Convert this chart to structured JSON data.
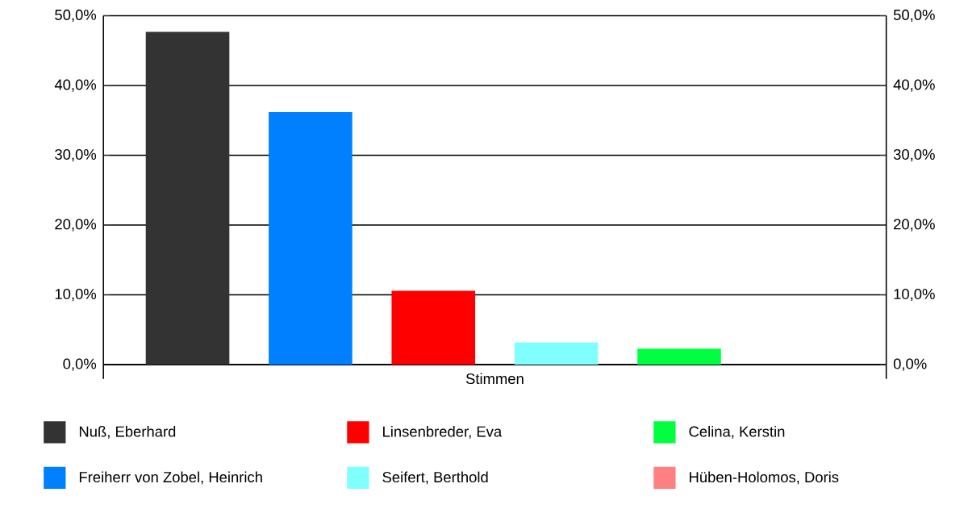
{
  "chart_data": {
    "type": "bar",
    "categories": [
      "Stimmen"
    ],
    "series": [
      {
        "name": "Nuß, Eberhard",
        "color": "#333333",
        "values": [
          47.7
        ]
      },
      {
        "name": "Freiherr von Zobel, Heinrich",
        "color": "#0080ff",
        "values": [
          36.2
        ]
      },
      {
        "name": "Linsenbreder, Eva",
        "color": "#ff0000",
        "values": [
          10.6
        ]
      },
      {
        "name": "Seifert, Berthold",
        "color": "#80ffff",
        "values": [
          3.2
        ]
      },
      {
        "name": "Celina, Kerstin",
        "color": "#00ff40",
        "values": [
          2.3
        ]
      },
      {
        "name": "Hüben-Holomos, Doris",
        "color": "#ff8080",
        "values": [
          0
        ]
      }
    ],
    "ylim": [
      0,
      50
    ],
    "yticks": [
      {
        "value": 0,
        "label": "0,0%"
      },
      {
        "value": 10,
        "label": "10,0%"
      },
      {
        "value": 20,
        "label": "20,0%"
      },
      {
        "value": 30,
        "label": "30,0%"
      },
      {
        "value": 40,
        "label": "40,0%"
      },
      {
        "value": 50,
        "label": "50,0%"
      }
    ],
    "grid": "y",
    "legend": "bottom"
  }
}
